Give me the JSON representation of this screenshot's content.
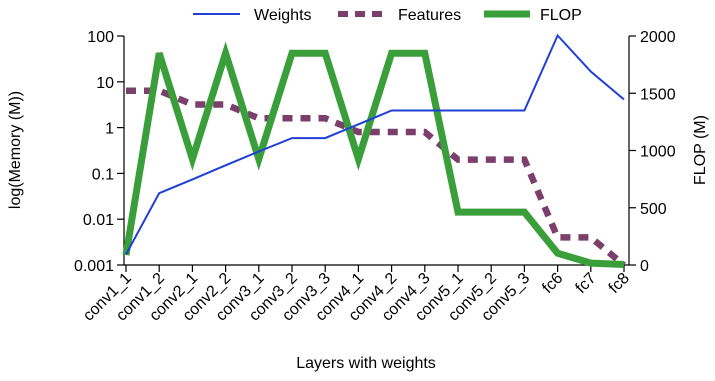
{
  "chart_data": {
    "type": "line",
    "xlabel": "Layers with weights",
    "ylabel_left": "log(Memory (M))",
    "ylabel_right": "FLOP (M)",
    "categories": [
      "conv1_1",
      "conv1_2",
      "conv2_1",
      "conv2_2",
      "conv3_1",
      "conv3_2",
      "conv3_3",
      "conv4_1",
      "conv4_2",
      "conv4_3",
      "conv5_1",
      "conv5_2",
      "conv5_3",
      "fc6",
      "fc7",
      "fc8"
    ],
    "left_axis": {
      "scale": "log",
      "ylim": [
        0.001,
        100
      ],
      "ticks": [
        0.001,
        0.01,
        0.1,
        1,
        10,
        100
      ],
      "tick_labels": [
        "0.001",
        "0.01",
        "0.1",
        "1",
        "10",
        "100"
      ]
    },
    "right_axis": {
      "scale": "linear",
      "ylim": [
        0,
        2000
      ],
      "ticks": [
        0,
        500,
        1000,
        1500,
        2000
      ],
      "tick_labels": [
        "0",
        "500",
        "1000",
        "1500",
        "2000"
      ]
    },
    "series": [
      {
        "name": "Weights",
        "axis": "left",
        "style": "solid-thin",
        "color": "#1f3fd6",
        "values": [
          0.0017,
          0.037,
          0.074,
          0.15,
          0.3,
          0.59,
          0.59,
          1.18,
          2.36,
          2.36,
          2.36,
          2.36,
          2.36,
          102.8,
          16.8,
          4.1
        ]
      },
      {
        "name": "Features",
        "axis": "left",
        "style": "dashed-thick",
        "color": "#7b3f6b",
        "values": [
          6.4,
          6.4,
          3.2,
          3.2,
          1.6,
          1.6,
          1.6,
          0.8,
          0.8,
          0.8,
          0.2,
          0.2,
          0.2,
          0.004,
          0.004,
          0.001
        ]
      },
      {
        "name": "FLOP",
        "axis": "right",
        "style": "solid-thick",
        "color": "#3a9e3a",
        "values": [
          87,
          1850,
          925,
          1850,
          925,
          1850,
          1850,
          925,
          1850,
          1850,
          462,
          462,
          462,
          103,
          17,
          4
        ]
      }
    ],
    "legend": "top"
  }
}
